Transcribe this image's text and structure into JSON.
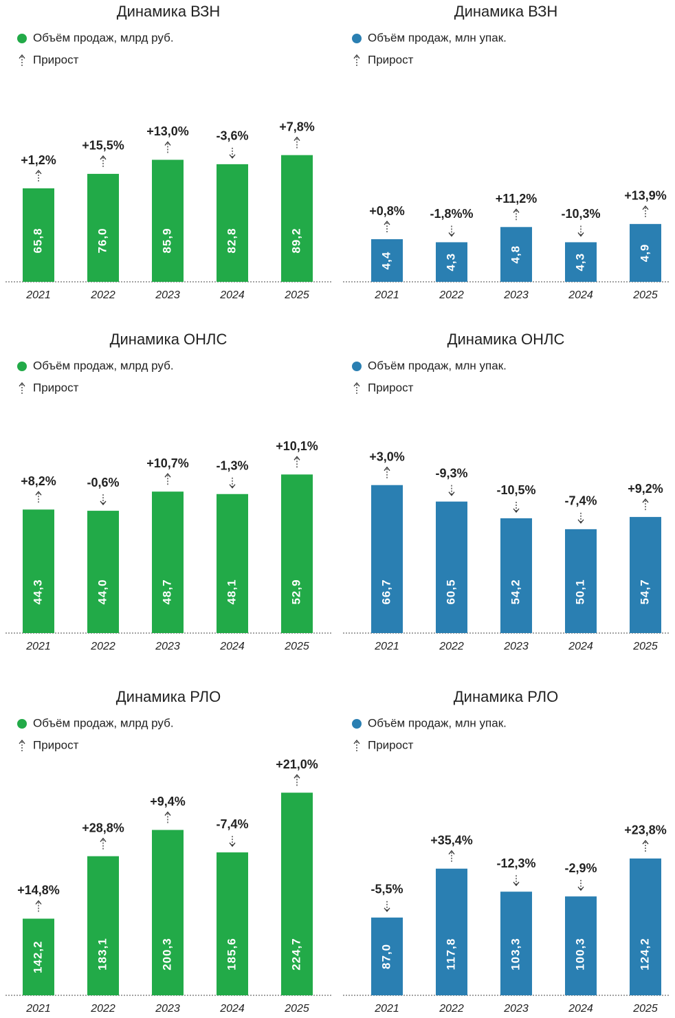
{
  "chart_data": [
    {
      "type": "bar",
      "title": "Динамика ВЗН",
      "legend": {
        "series": "Объём продаж, млрд руб.",
        "growth": "Прирост"
      },
      "color": "#22aa48",
      "categories": [
        "2021",
        "2022",
        "2023",
        "2024",
        "2025"
      ],
      "values": [
        65.8,
        76.0,
        85.9,
        82.8,
        89.2
      ],
      "value_labels": [
        "65,8",
        "76,0",
        "85,9",
        "82,8",
        "89,2"
      ],
      "growth_labels": [
        "+1,2%",
        "+15,5%",
        "+13,0%",
        "-3,6%",
        "+7,8%"
      ],
      "ylim": [
        0,
        150
      ]
    },
    {
      "type": "bar",
      "title": "Динамика ВЗН",
      "legend": {
        "series": "Объём продаж, млн упак.",
        "growth": "Прирост"
      },
      "color": "#2a7fb2",
      "categories": [
        "2021",
        "2022",
        "2023",
        "2024",
        "2025"
      ],
      "values": [
        4.4,
        4.3,
        4.8,
        4.3,
        4.9
      ],
      "value_labels": [
        "4,4",
        "4,3",
        "4,8",
        "4,3",
        "4,9"
      ],
      "growth_labels": [
        "+0,8%",
        "-1,8%%",
        "+11,2%",
        "-10,3%",
        "+13,9%"
      ],
      "ylim": [
        3,
        10
      ]
    },
    {
      "type": "bar",
      "title": "Динамика ОНЛС",
      "legend": {
        "series": "Объём продаж, млрд руб.",
        "growth": "Прирост"
      },
      "color": "#22aa48",
      "categories": [
        "2021",
        "2022",
        "2023",
        "2024",
        "2025"
      ],
      "values": [
        44.3,
        44.0,
        48.7,
        48.1,
        52.9
      ],
      "value_labels": [
        "44,3",
        "44,0",
        "48,7",
        "48,1",
        "52,9"
      ],
      "growth_labels": [
        "+8,2%",
        "-0,6%",
        "+10,7%",
        "-1,3%",
        "+10,1%"
      ],
      "ylim": [
        14,
        72
      ]
    },
    {
      "type": "bar",
      "title": "Динамика ОНЛС",
      "legend": {
        "series": "Объём продаж, млн упак.",
        "growth": "Прирост"
      },
      "color": "#2a7fb2",
      "categories": [
        "2021",
        "2022",
        "2023",
        "2024",
        "2025"
      ],
      "values": [
        66.7,
        60.5,
        54.2,
        50.1,
        54.7
      ],
      "value_labels": [
        "66,7",
        "60,5",
        "54,2",
        "50,1",
        "54,7"
      ],
      "growth_labels": [
        "+3,0%",
        "-9,3%",
        "-10,5%",
        "-7,4%",
        "+9,2%"
      ],
      "ylim": [
        11,
        100
      ]
    },
    {
      "type": "bar",
      "title": "Динамика РЛО",
      "legend": {
        "series": "Объём продаж, млрд руб.",
        "growth": "Прирост"
      },
      "color": "#22aa48",
      "categories": [
        "2021",
        "2022",
        "2023",
        "2024",
        "2025"
      ],
      "values": [
        142.2,
        183.1,
        200.3,
        185.6,
        224.7
      ],
      "value_labels": [
        "142,2",
        "183,1",
        "200,3",
        "185,6",
        "224,7"
      ],
      "growth_labels": [
        "+14,8%",
        "+28,8%",
        "+9,4%",
        "-7,4%",
        "+21,0%"
      ],
      "ylim": [
        92,
        250
      ]
    },
    {
      "type": "bar",
      "title": "Динамика РЛО",
      "legend": {
        "series": "Объём продаж, млн упак.",
        "growth": "Прирост"
      },
      "color": "#2a7fb2",
      "categories": [
        "2021",
        "2022",
        "2023",
        "2024",
        "2025"
      ],
      "values": [
        87.0,
        117.8,
        103.3,
        100.3,
        124.2
      ],
      "value_labels": [
        "87,0",
        "117,8",
        "103,3",
        "100,3",
        "124,2"
      ],
      "growth_labels": [
        "-5,5%",
        "+35,4%",
        "-12,3%",
        "-2,9%",
        "+23,8%"
      ],
      "ylim": [
        38,
        190
      ]
    }
  ]
}
